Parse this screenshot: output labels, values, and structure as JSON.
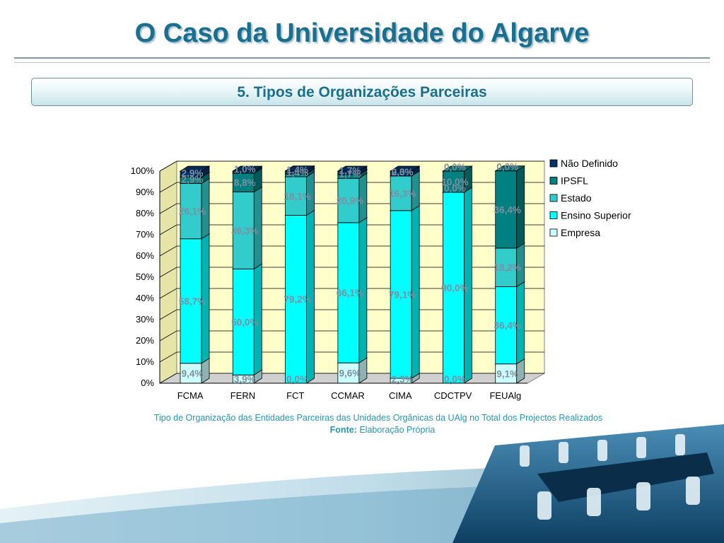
{
  "slide": {
    "title": "O Caso da Universidade do Algarve",
    "section": "5. Tipos de Organizações Parceiras",
    "caption": "Tipo de Organização das Entidades Parceiras das Unidades Orgânicas da UAlg no Total dos Projectos Realizados",
    "source_label": "Fonte:",
    "source_value": "Elaboração Própria"
  },
  "colors": {
    "title": "#1a6e8e",
    "caption": "#2797b1",
    "plot_background": "#ffffcc"
  },
  "chart_data": {
    "type": "bar",
    "stacked": "percent",
    "title": "",
    "xlabel": "",
    "ylabel": "",
    "ylim": [
      0,
      100
    ],
    "y_ticks": [
      "0%",
      "10%",
      "20%",
      "30%",
      "40%",
      "50%",
      "60%",
      "70%",
      "80%",
      "90%",
      "100%"
    ],
    "grid": true,
    "legend_position": "right",
    "categories": [
      "FCMA",
      "FERN",
      "FCT",
      "CCMAR",
      "CIMA",
      "CDCTPV",
      "FEUAlg"
    ],
    "series": [
      {
        "name": "Empresa",
        "color": "#ccffff",
        "values": [
          9.4,
          3.9,
          0.0,
          9.6,
          2.3,
          0.0,
          9.1
        ],
        "labels": [
          "9,4%",
          "3,9%",
          "0,0%",
          "9,6%",
          "2,3%",
          "0,0%",
          "9,1%"
        ]
      },
      {
        "name": "Ensino Superior",
        "color": "#00ffff",
        "values": [
          58.7,
          50.0,
          79.2,
          66.1,
          79.1,
          90.0,
          36.4
        ],
        "labels": [
          "58,7%",
          "50,0%",
          "79,2%",
          "66,1%",
          "79,1%",
          "90,0%",
          "36,4%"
        ]
      },
      {
        "name": "Estado",
        "color": "#33cccc",
        "values": [
          26.1,
          36.3,
          18.1,
          20.9,
          16.3,
          0.0,
          18.2
        ],
        "labels": [
          "26,1%",
          "36,3%",
          "18,1%",
          "20,9%",
          "16,3%",
          "0,0%",
          "18,2%"
        ]
      },
      {
        "name": "IPSFL",
        "color": "#008080",
        "values": [
          2.9,
          8.8,
          1.4,
          1.7,
          0.0,
          10.0,
          36.4
        ],
        "labels": [
          "2,9%",
          "8,8%",
          "1,4%",
          "1,7%",
          "0,0%",
          "10,0%",
          "36,4%"
        ]
      },
      {
        "name": "Não Definido",
        "color": "#003366",
        "values": [
          2.9,
          1.0,
          1.4,
          1.7,
          2.3,
          0.0,
          0.0
        ],
        "labels": [
          "2,9%",
          "1,0%",
          "1,4%",
          "1,7%",
          "2,3%",
          "0,0%",
          "0,0%"
        ]
      }
    ],
    "legend_order": [
      "Não Definido",
      "IPSFL",
      "Estado",
      "Ensino Superior",
      "Empresa"
    ]
  }
}
